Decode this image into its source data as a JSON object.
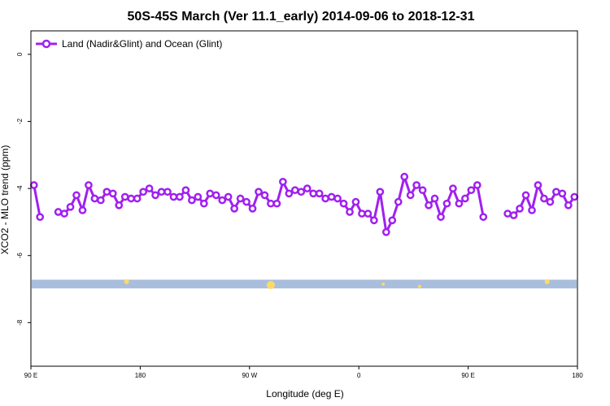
{
  "chart_data": {
    "type": "line",
    "title": "50S-45S March (Ver 11.1_early)   2014-09-06 to 2018-12-31",
    "xlabel": "Longitude (deg E)",
    "ylabel": "XCO2 - MLO trend (ppm)",
    "xlim": [
      90,
      450
    ],
    "ylim": [
      -9.3,
      0.7
    ],
    "x_tick_values": [
      90,
      162,
      234,
      306,
      378,
      450
    ],
    "x_tick_labels": [
      "90 E",
      "180",
      "90 W",
      "0",
      "90 E",
      "180"
    ],
    "y_tick_values": [
      0,
      -2,
      -4,
      -6,
      -8
    ],
    "y_tick_labels": [
      "0",
      "-2",
      "-4",
      "-6",
      "-8"
    ],
    "grid": false,
    "legend_position": "top-left",
    "series": [
      {
        "name": "Land (Nadir&Glint) and Ocean (Glint)",
        "color": "#a020f0",
        "x": [
          92,
          96,
          104,
          108,
          112,
          116,
          120,
          124,
          128,
          132,
          136,
          140,
          144,
          148,
          152,
          156,
          160,
          164,
          168,
          172,
          176,
          180,
          184,
          188,
          192,
          196,
          200,
          204,
          208,
          212,
          216,
          220,
          224,
          228,
          232,
          236,
          240,
          244,
          248,
          252,
          256,
          260,
          264,
          268,
          272,
          276,
          280,
          284,
          288,
          292,
          296,
          300,
          304,
          308,
          312,
          316,
          320,
          324,
          328,
          332,
          336,
          340,
          344,
          348,
          352,
          356,
          360,
          364,
          368,
          372,
          376,
          380,
          384,
          388,
          392,
          404,
          408,
          412,
          416,
          420,
          424,
          428,
          432,
          436,
          440,
          444,
          448
        ],
        "y": [
          -3.9,
          -4.85,
          null,
          -4.7,
          -4.75,
          -4.55,
          -4.2,
          -4.65,
          -3.9,
          -4.3,
          -4.35,
          -4.1,
          -4.15,
          -4.5,
          -4.25,
          -4.3,
          -4.3,
          -4.1,
          -4.0,
          -4.2,
          -4.1,
          -4.1,
          -4.25,
          -4.25,
          -4.05,
          -4.35,
          -4.25,
          -4.45,
          -4.15,
          -4.2,
          -4.35,
          -4.25,
          -4.6,
          -4.3,
          -4.4,
          -4.6,
          -4.1,
          -4.2,
          -4.45,
          -4.45,
          -3.8,
          -4.15,
          -4.05,
          -4.1,
          -4.0,
          -4.15,
          -4.15,
          -4.3,
          -4.25,
          -4.3,
          -4.45,
          -4.7,
          -4.4,
          -4.75,
          -4.75,
          -4.95,
          -4.1,
          -5.3,
          -4.95,
          -4.4,
          -3.65,
          -4.2,
          -3.9,
          -4.05,
          -4.5,
          -4.3,
          -4.85,
          -4.45,
          -4.0,
          -4.45,
          -4.3,
          -4.05,
          -3.9,
          -4.85,
          null,
          -4.75,
          -4.8,
          -4.6,
          -4.2,
          -4.65,
          -3.9,
          -4.3,
          -4.4,
          -4.1,
          -4.15,
          -4.5,
          -4.25
        ]
      }
    ],
    "bands": [
      {
        "color": "#a9bedc",
        "y0": -6.98,
        "y1": -6.72
      }
    ],
    "band_markers": [
      {
        "color": "#ffd966",
        "x": 153,
        "y": -6.78,
        "size": 4
      },
      {
        "color": "#ffd966",
        "x": 248,
        "y": -6.88,
        "size": 8
      },
      {
        "color": "#ffd966",
        "x": 322,
        "y": -6.85,
        "size": 2
      },
      {
        "color": "#ffd966",
        "x": 346,
        "y": -6.92,
        "size": 2
      },
      {
        "color": "#ffd966",
        "x": 430,
        "y": -6.78,
        "size": 4
      }
    ]
  }
}
